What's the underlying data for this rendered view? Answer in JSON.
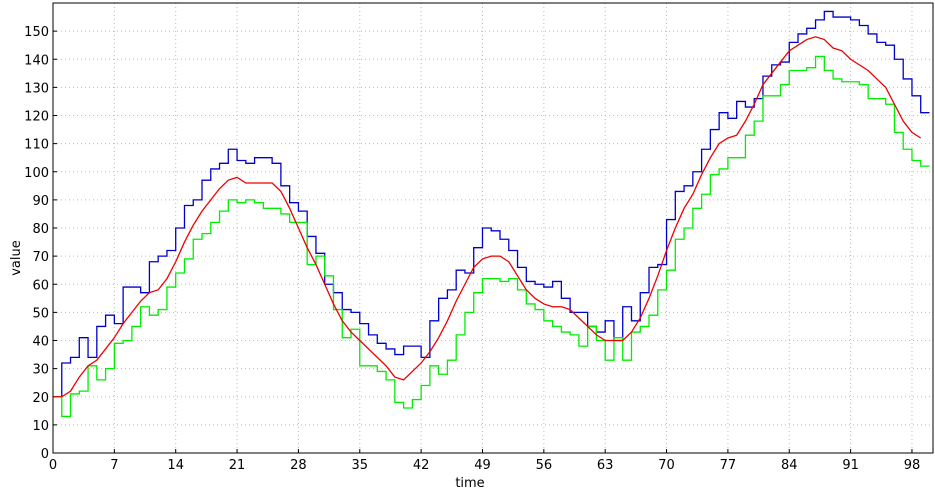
{
  "chart_data": {
    "type": "line",
    "x_label": "time",
    "y_label": "value",
    "x": [
      0,
      1,
      2,
      3,
      4,
      5,
      6,
      7,
      8,
      9,
      10,
      11,
      12,
      13,
      14,
      15,
      16,
      17,
      18,
      19,
      20,
      21,
      22,
      23,
      24,
      25,
      26,
      27,
      28,
      29,
      30,
      31,
      32,
      33,
      34,
      35,
      36,
      37,
      38,
      39,
      40,
      41,
      42,
      43,
      44,
      45,
      46,
      47,
      48,
      49,
      50,
      51,
      52,
      53,
      54,
      55,
      56,
      57,
      58,
      59,
      60,
      61,
      62,
      63,
      64,
      65,
      66,
      67,
      68,
      69,
      70,
      71,
      72,
      73,
      74,
      75,
      76,
      77,
      78,
      79,
      80,
      81,
      82,
      83,
      84,
      85,
      86,
      87,
      88,
      89,
      90,
      91,
      92,
      93,
      94,
      95,
      96,
      97,
      98,
      99
    ],
    "series": [
      {
        "color": "#0000cc",
        "step": true,
        "values": [
          20,
          32,
          34,
          41,
          34,
          45,
          49,
          46,
          59,
          59,
          57,
          68,
          70,
          72,
          80,
          88,
          90,
          97,
          101,
          103,
          108,
          104,
          103,
          105,
          105,
          103,
          95,
          89,
          86,
          77,
          71,
          60,
          57,
          51,
          50,
          46,
          42,
          39,
          37,
          35,
          38,
          38,
          34,
          47,
          55,
          58,
          65,
          64,
          73,
          80,
          79,
          76,
          72,
          66,
          61,
          60,
          59,
          61,
          55,
          50,
          50,
          45,
          43,
          47,
          40,
          52,
          47,
          57,
          66,
          67,
          83,
          93,
          95,
          100,
          108,
          115,
          121,
          119,
          125,
          123,
          126,
          134,
          138,
          139,
          146,
          149,
          151,
          154,
          157,
          155,
          155,
          154,
          152,
          149,
          146,
          145,
          140,
          133,
          127,
          121
        ]
      },
      {
        "color": "#00ee00",
        "step": true,
        "values": [
          20,
          13,
          21,
          22,
          31,
          26,
          30,
          39,
          40,
          45,
          52,
          49,
          51,
          59,
          64,
          69,
          76,
          78,
          82,
          86,
          90,
          89,
          90,
          89,
          87,
          87,
          85,
          82,
          82,
          67,
          70,
          63,
          51,
          41,
          44,
          31,
          31,
          29,
          26,
          18,
          16,
          19,
          24,
          31,
          28,
          33,
          42,
          50,
          57,
          62,
          62,
          61,
          62,
          58,
          53,
          51,
          47,
          45,
          43,
          42,
          38,
          45,
          40,
          33,
          41,
          33,
          43,
          45,
          49,
          58,
          65,
          76,
          80,
          87,
          92,
          99,
          101,
          105,
          105,
          113,
          118,
          127,
          127,
          131,
          136,
          136,
          137,
          141,
          136,
          133,
          132,
          132,
          131,
          126,
          126,
          124,
          114,
          108,
          104,
          102
        ]
      },
      {
        "color": "#ee0000",
        "step": false,
        "values": [
          20,
          20,
          22,
          27,
          31,
          33,
          37,
          41,
          46,
          50,
          54,
          57,
          58,
          62,
          68,
          75,
          81,
          86,
          90,
          94,
          97,
          98,
          96,
          96,
          96,
          96,
          93,
          87,
          80,
          73,
          67,
          60,
          53,
          47,
          43,
          40,
          37,
          34,
          31,
          27,
          26,
          29,
          32,
          36,
          41,
          47,
          54,
          60,
          66,
          69,
          70,
          70,
          68,
          63,
          58,
          55,
          53,
          52,
          52,
          51,
          48,
          45,
          42,
          40,
          40,
          40,
          43,
          48,
          55,
          63,
          72,
          80,
          87,
          92,
          99,
          105,
          110,
          112,
          113,
          118,
          124,
          131,
          135,
          139,
          143,
          145,
          147,
          148,
          147,
          144,
          143,
          140,
          138,
          136,
          133,
          130,
          124,
          118,
          114,
          112
        ]
      }
    ],
    "xlim": [
      0,
      100.4
    ],
    "ylim": [
      0,
      160
    ],
    "xticks": [
      0,
      7,
      14,
      21,
      28,
      35,
      42,
      49,
      56,
      63,
      70,
      77,
      84,
      91,
      98
    ],
    "yticks": [
      0,
      10,
      20,
      30,
      40,
      50,
      60,
      70,
      80,
      90,
      100,
      110,
      120,
      130,
      140,
      150
    ],
    "grid": true
  }
}
